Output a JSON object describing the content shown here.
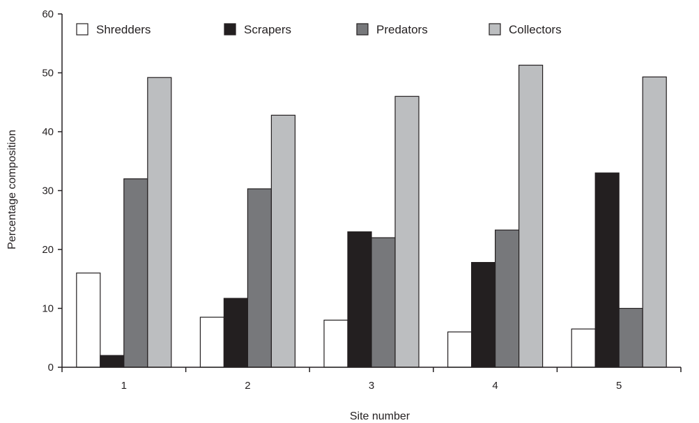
{
  "chart_data": {
    "type": "bar",
    "title": "",
    "xlabel": "Site number",
    "ylabel": "Percentage composition",
    "categories": [
      "1",
      "2",
      "3",
      "4",
      "5"
    ],
    "ylim": [
      0,
      60
    ],
    "yticks": [
      "0",
      "10",
      "20",
      "30",
      "40",
      "50",
      "60"
    ],
    "grid": false,
    "legend_position": "top",
    "series": [
      {
        "name": "Shredders",
        "color": "#ffffff",
        "values": [
          16,
          8.5,
          8,
          6,
          6.5
        ]
      },
      {
        "name": "Scrapers",
        "color": "#231f20",
        "values": [
          2,
          11.7,
          23,
          17.8,
          33
        ]
      },
      {
        "name": "Predators",
        "color": "#77787b",
        "values": [
          32,
          30.3,
          22,
          23.3,
          10
        ]
      },
      {
        "name": "Collectors",
        "color": "#bcbec0",
        "values": [
          49.2,
          42.8,
          46,
          51.3,
          49.3
        ]
      }
    ]
  }
}
